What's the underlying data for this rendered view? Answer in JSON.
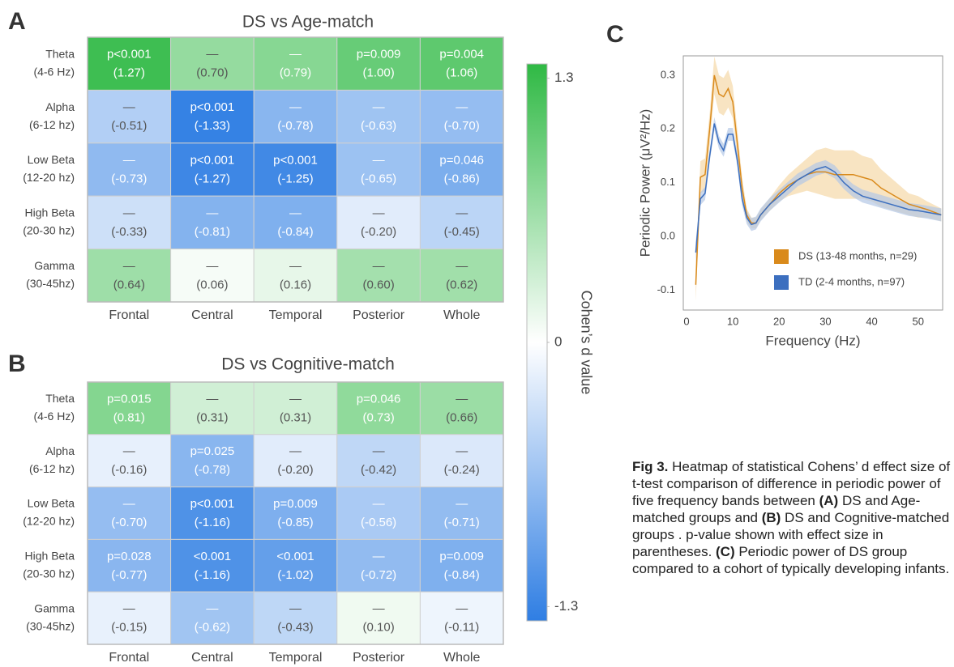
{
  "chart_data": [
    {
      "type": "heatmap",
      "panel": "A",
      "title": "DS vs Age-match",
      "rows": [
        "Theta",
        "Alpha",
        "Low Beta",
        "High Beta",
        "Gamma"
      ],
      "row_sublabels": [
        "(4-6 Hz)",
        "(6-12 hz)",
        "(12-20 hz)",
        "(20-30 hz)",
        "(30-45hz)"
      ],
      "columns": [
        "Frontal",
        "Central",
        "Temporal",
        "Posterior",
        "Whole"
      ],
      "values": [
        [
          1.27,
          0.7,
          0.79,
          1.0,
          1.06
        ],
        [
          -0.51,
          -1.33,
          -0.78,
          -0.63,
          -0.7
        ],
        [
          -0.73,
          -1.27,
          -1.25,
          -0.65,
          -0.86
        ],
        [
          -0.33,
          -0.81,
          -0.84,
          -0.2,
          -0.45
        ],
        [
          0.64,
          0.06,
          0.16,
          0.6,
          0.62
        ]
      ],
      "value_labels": [
        [
          "(1.27)",
          "(0.70)",
          "(0.79)",
          "(1.00)",
          "(1.06)"
        ],
        [
          "(-0.51)",
          "(-1.33)",
          "(-0.78)",
          "(-0.63)",
          "(-0.70)"
        ],
        [
          "(-0.73)",
          "(-1.27)",
          "(-1.25)",
          "(-0.65)",
          "(-0.86)"
        ],
        [
          "(-0.33)",
          "(-0.81)",
          "(-0.84)",
          "(-0.20)",
          "(-0.45)"
        ],
        [
          "(0.64)",
          "(0.06)",
          "(0.16)",
          "(0.60)",
          "(0.62)"
        ]
      ],
      "p_labels": [
        [
          "p<0.001",
          "—",
          "—",
          "p=0.009",
          "p=0.004"
        ],
        [
          "—",
          "p<0.001",
          "—",
          "—",
          "—"
        ],
        [
          "—",
          "p<0.001",
          "p<0.001",
          "—",
          "p=0.046"
        ],
        [
          "—",
          "—",
          "—",
          "—",
          "—"
        ],
        [
          "—",
          "—",
          "—",
          "—",
          "—"
        ]
      ]
    },
    {
      "type": "heatmap",
      "panel": "B",
      "title": "DS vs Cognitive-match",
      "rows": [
        "Theta",
        "Alpha",
        "Low Beta",
        "High Beta",
        "Gamma"
      ],
      "row_sublabels": [
        "(4-6 Hz)",
        "(6-12 hz)",
        "(12-20 hz)",
        "(20-30 hz)",
        "(30-45hz)"
      ],
      "columns": [
        "Frontal",
        "Central",
        "Temporal",
        "Posterior",
        "Whole"
      ],
      "values": [
        [
          0.81,
          0.31,
          0.31,
          0.73,
          0.66
        ],
        [
          -0.16,
          -0.78,
          -0.2,
          -0.42,
          -0.24
        ],
        [
          -0.7,
          -1.16,
          -0.85,
          -0.56,
          -0.71
        ],
        [
          -0.77,
          -1.16,
          -1.02,
          -0.72,
          -0.84
        ],
        [
          -0.15,
          -0.62,
          -0.43,
          0.1,
          -0.11
        ]
      ],
      "value_labels": [
        [
          "(0.81)",
          "(0.31)",
          "(0.31)",
          "(0.73)",
          "(0.66)"
        ],
        [
          "(-0.16)",
          "(-0.78)",
          "(-0.20)",
          "(-0.42)",
          "(-0.24)"
        ],
        [
          "(-0.70)",
          "(-1.16)",
          "(-0.85)",
          "(-0.56)",
          "(-0.71)"
        ],
        [
          "(-0.77)",
          "(-1.16)",
          "(-1.02)",
          "(-0.72)",
          "(-0.84)"
        ],
        [
          "(-0.15)",
          "(-0.62)",
          "(-0.43)",
          "(0.10)",
          "(-0.11)"
        ]
      ],
      "p_labels": [
        [
          "p=0.015",
          "—",
          "—",
          "p=0.046",
          "—"
        ],
        [
          "—",
          "p=0.025",
          "—",
          "—",
          "—"
        ],
        [
          "—",
          "p<0.001",
          "p=0.009",
          "—",
          "—"
        ],
        [
          "p=0.028",
          "<0.001",
          "<0.001",
          "—",
          "p=0.009"
        ],
        [
          "—",
          "—",
          "—",
          "—",
          "—"
        ]
      ]
    },
    {
      "type": "colorbar",
      "label": "Cohen’s d value",
      "lim": [
        -1.37,
        1.37
      ],
      "ticks": [
        1.3,
        0,
        -1.3
      ],
      "colors": [
        "#2fb944",
        "#ffffff",
        "#2f7ee3"
      ]
    },
    {
      "type": "line",
      "panel": "C",
      "xlabel": "Frequency (Hz)",
      "ylabel": "Periodic Power (μV²/Hz)",
      "xlim": [
        -0.7,
        55.3
      ],
      "ylim": [
        -0.137,
        0.336
      ],
      "xticks": [
        0,
        10,
        20,
        30,
        40,
        50
      ],
      "yticks": [
        -0.1,
        {
          "value": 0,
          "label": "0.0"
        },
        0.1,
        0.2,
        0.3
      ],
      "grid": false,
      "legend": "lower right",
      "x": [
        2,
        3,
        4,
        5,
        6,
        7,
        8,
        9,
        10,
        11,
        12,
        13,
        14,
        15,
        16,
        18,
        20,
        22,
        24,
        26,
        28,
        30,
        32,
        34,
        36,
        38,
        40,
        42,
        44,
        46,
        48,
        50,
        52,
        55
      ],
      "series": [
        {
          "name": "DS (13-48 months, n=29)",
          "color": "#d98a1c",
          "band_color": "#f5d9a8",
          "values": [
            -0.09,
            0.11,
            0.115,
            0.2,
            0.3,
            0.265,
            0.26,
            0.275,
            0.25,
            0.17,
            0.09,
            0.04,
            0.025,
            0.025,
            0.04,
            0.06,
            0.08,
            0.095,
            0.105,
            0.115,
            0.12,
            0.12,
            0.115,
            0.115,
            0.115,
            0.11,
            0.105,
            0.09,
            0.08,
            0.07,
            0.06,
            0.055,
            0.05,
            0.04
          ],
          "upper": [
            -0.06,
            0.14,
            0.145,
            0.23,
            0.335,
            0.3,
            0.295,
            0.31,
            0.28,
            0.195,
            0.11,
            0.052,
            0.035,
            0.035,
            0.05,
            0.072,
            0.095,
            0.115,
            0.13,
            0.145,
            0.16,
            0.165,
            0.16,
            0.16,
            0.16,
            0.15,
            0.145,
            0.125,
            0.11,
            0.095,
            0.08,
            0.075,
            0.065,
            0.052
          ],
          "lower": [
            -0.12,
            0.08,
            0.085,
            0.17,
            0.265,
            0.23,
            0.225,
            0.24,
            0.22,
            0.145,
            0.07,
            0.028,
            0.015,
            0.015,
            0.03,
            0.048,
            0.065,
            0.075,
            0.08,
            0.085,
            0.08,
            0.075,
            0.07,
            0.07,
            0.07,
            0.07,
            0.065,
            0.055,
            0.05,
            0.045,
            0.04,
            0.035,
            0.035,
            0.028
          ]
        },
        {
          "name": "TD (2-4 months, n=97)",
          "color": "#3c6fbf",
          "band_color": "#b3c8e6",
          "values": [
            -0.03,
            0.07,
            0.08,
            0.15,
            0.21,
            0.175,
            0.16,
            0.19,
            0.19,
            0.14,
            0.07,
            0.035,
            0.022,
            0.025,
            0.04,
            0.06,
            0.075,
            0.09,
            0.105,
            0.115,
            0.125,
            0.13,
            0.12,
            0.1,
            0.085,
            0.075,
            0.07,
            0.065,
            0.06,
            0.055,
            0.05,
            0.048,
            0.045,
            0.04
          ],
          "upper": [
            -0.01,
            0.082,
            0.092,
            0.162,
            0.222,
            0.187,
            0.172,
            0.202,
            0.202,
            0.152,
            0.082,
            0.047,
            0.034,
            0.037,
            0.052,
            0.072,
            0.087,
            0.102,
            0.117,
            0.127,
            0.137,
            0.142,
            0.132,
            0.112,
            0.097,
            0.087,
            0.082,
            0.077,
            0.072,
            0.067,
            0.062,
            0.06,
            0.057,
            0.052
          ],
          "lower": [
            -0.05,
            0.058,
            0.068,
            0.138,
            0.198,
            0.163,
            0.148,
            0.178,
            0.178,
            0.128,
            0.058,
            0.023,
            0.01,
            0.013,
            0.028,
            0.048,
            0.063,
            0.078,
            0.093,
            0.103,
            0.113,
            0.118,
            0.108,
            0.088,
            0.073,
            0.063,
            0.058,
            0.053,
            0.048,
            0.043,
            0.038,
            0.036,
            0.033,
            0.028
          ]
        }
      ]
    }
  ],
  "caption": {
    "runs": [
      {
        "text": "Fig 3.",
        "bold": true
      },
      {
        "text": " Heatmap of statistical Cohens’ d effect size of t-test comparison of difference in periodic power of five frequency bands between ",
        "bold": false
      },
      {
        "text": "(A)",
        "bold": true
      },
      {
        "text": " DS and Age-matched groups and ",
        "bold": false
      },
      {
        "text": "(B)",
        "bold": true
      },
      {
        "text": " DS and Cognitive-matched groups . p-value shown with effect size in parentheses. ",
        "bold": false
      },
      {
        "text": "(C)",
        "bold": true
      },
      {
        "text": " Periodic power of DS group compared to a cohort of typically developing infants.",
        "bold": false
      }
    ]
  }
}
